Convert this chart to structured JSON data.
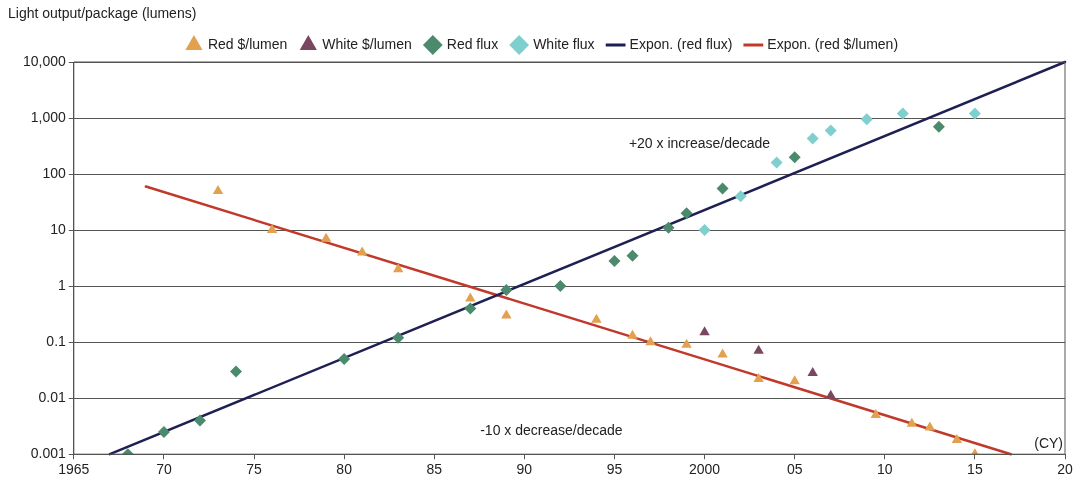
{
  "chart_data": {
    "type": "scatter",
    "ylabel": "Light output/package (lumens)",
    "xlim": [
      1965,
      2020
    ],
    "xticks": [
      1965,
      {
        "value": 1970,
        "label": "70"
      },
      {
        "value": 1975,
        "label": "75"
      },
      {
        "value": 1980,
        "label": "80"
      },
      {
        "value": 1985,
        "label": "85"
      },
      {
        "value": 1990,
        "label": "90"
      },
      {
        "value": 1995,
        "label": "95"
      },
      2000,
      {
        "value": 2005,
        "label": "05"
      },
      {
        "value": 2010,
        "label": "10"
      },
      {
        "value": 2015,
        "label": "15"
      },
      {
        "value": 2020,
        "label": "20"
      }
    ],
    "ylim": [
      0.001,
      10000
    ],
    "yticks": [
      0.001,
      0.01,
      0.1,
      1,
      10,
      100,
      {
        "value": 1000,
        "label": "1,000"
      },
      {
        "value": 10000,
        "label": "10,000"
      }
    ],
    "log": "y",
    "grid": "y",
    "legend": "top",
    "series": [
      {
        "name": "Red $/lumen",
        "color": "#e3a04e",
        "marker": "triangle",
        "x": [
          1973,
          1976,
          1979,
          1981,
          1983,
          1987,
          1989,
          1994,
          1996,
          1997,
          1999,
          2001,
          2003,
          2005,
          2009.5,
          2011.5,
          2012.5,
          2014,
          2015
        ],
        "values": [
          50,
          10,
          7,
          4,
          2,
          0.6,
          0.3,
          0.25,
          0.13,
          0.1,
          0.09,
          0.06,
          0.022,
          0.02,
          0.005,
          0.0035,
          0.003,
          0.0018,
          0.001
        ]
      },
      {
        "name": "White $/lumen",
        "color": "#7a4760",
        "marker": "triangle",
        "x": [
          2000,
          2003,
          2006,
          2007
        ],
        "values": [
          0.15,
          0.07,
          0.028,
          0.011
        ]
      },
      {
        "name": "Red flux",
        "color": "#4b8a6c",
        "marker": "diamond",
        "x": [
          1968,
          1970,
          1972,
          1974,
          1980,
          1983,
          1987,
          1989,
          1992,
          1995,
          1996,
          1998,
          1999,
          2001,
          2005,
          2013
        ],
        "values": [
          0.001,
          0.0025,
          0.004,
          0.03,
          0.05,
          0.12,
          0.4,
          0.85,
          1,
          2.8,
          3.5,
          11,
          20,
          55,
          200,
          700
        ]
      },
      {
        "name": "White flux",
        "color": "#7fcfcf",
        "marker": "diamond",
        "x": [
          2000,
          2002,
          2004,
          2006,
          2007,
          2009,
          2011,
          2015
        ],
        "values": [
          10,
          40,
          160,
          430,
          600,
          950,
          1200,
          1200
        ]
      },
      {
        "name": "Expon. (red flux)",
        "type": "line",
        "color": "#1e1f52",
        "marker": "none",
        "x": [
          1967,
          2020
        ],
        "values": [
          0.001,
          10000
        ]
      },
      {
        "name": "Expon. (red $/lumen)",
        "type": "line",
        "color": "#c0392b",
        "marker": "none",
        "x": [
          1969,
          2017
        ],
        "values": [
          60,
          0.001
        ]
      }
    ],
    "annotations": [
      "+20 x increase/decade",
      "-10 x decrease/decade",
      "(CY)"
    ]
  }
}
